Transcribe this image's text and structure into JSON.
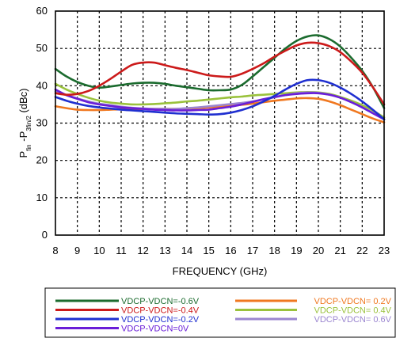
{
  "chart_data": {
    "type": "line",
    "xlabel": "FREQUENCY (GHz)",
    "ylabel": {
      "main_prefix": "P",
      "sub1": "fin",
      "mid": " -P",
      "sub2": "3fin/2",
      "suffix": " (dBc)"
    },
    "xlim": [
      8,
      23
    ],
    "ylim": [
      0,
      60
    ],
    "xticks": [
      8,
      9,
      10,
      11,
      12,
      13,
      14,
      15,
      16,
      17,
      18,
      19,
      20,
      21,
      22,
      23
    ],
    "yticks": [
      0,
      10,
      20,
      30,
      40,
      50,
      60
    ],
    "grid": true,
    "legend_position": "bottom",
    "x": [
      8,
      8.5,
      9,
      9.5,
      10,
      10.5,
      11,
      11.5,
      12,
      12.5,
      13,
      13.5,
      14,
      14.5,
      15,
      15.5,
      16,
      16.5,
      17,
      17.5,
      18,
      18.5,
      19,
      19.5,
      20,
      20.5,
      21,
      21.5,
      22,
      22.5,
      23
    ],
    "series": [
      {
        "name": "VDCP-VDCN=-0.6V",
        "color": "#1b6b2e",
        "values": [
          44.5,
          42.5,
          41,
          40,
          39.5,
          39.8,
          40.2,
          40.6,
          40.8,
          40.8,
          40.5,
          40,
          39.6,
          39.2,
          38.8,
          38.8,
          39,
          40.2,
          42.5,
          45,
          47.5,
          50,
          52,
          53.2,
          53.5,
          52.5,
          50.5,
          47.5,
          44,
          39.5,
          34
        ]
      },
      {
        "name": "VDCP-VDCN=-0.4V",
        "color": "#cc1a1a",
        "values": [
          38,
          37.6,
          37.8,
          38.6,
          40,
          41.8,
          43.8,
          45.6,
          46.2,
          46.2,
          45.5,
          44.8,
          44.2,
          43.5,
          42.8,
          42.5,
          42.4,
          43.2,
          44.5,
          46,
          47.8,
          49.4,
          50.8,
          51.5,
          51.4,
          50.6,
          49,
          46.5,
          43.5,
          39.5,
          35
        ]
      },
      {
        "name": "VDCP-VDCN=-0.2V",
        "color": "#1f2fd0",
        "values": [
          37,
          36,
          35.2,
          34.6,
          34.2,
          33.9,
          33.6,
          33.4,
          33.2,
          33,
          32.8,
          32.6,
          32.5,
          32.4,
          32.3,
          32.4,
          32.8,
          33.5,
          34.5,
          35.8,
          37.3,
          39,
          40.5,
          41.5,
          41.5,
          40.8,
          39.5,
          37.8,
          35.8,
          33.5,
          31
        ]
      },
      {
        "name": "VDCP-VDCN=0V",
        "color": "#6a1ed8",
        "values": [
          39,
          37.5,
          36.5,
          35.6,
          35,
          34.6,
          34.2,
          34,
          33.8,
          33.6,
          33.5,
          33.4,
          33.4,
          33.5,
          33.6,
          34,
          34.4,
          35,
          35.7,
          36.4,
          37,
          37.5,
          37.8,
          38,
          38,
          37.6,
          36.8,
          35.6,
          34.2,
          32.6,
          31
        ]
      },
      {
        "name": "VDCP-VDCN= 0.2V",
        "color": "#f07820",
        "values": [
          34.5,
          34,
          33.6,
          33.5,
          33.5,
          33.6,
          33.7,
          33.7,
          33.8,
          33.8,
          33.8,
          33.8,
          33.9,
          34,
          34.2,
          34.4,
          34.6,
          34.9,
          35.2,
          35.6,
          36,
          36.3,
          36.6,
          36.7,
          36.5,
          35.8,
          34.8,
          33.6,
          32.4,
          31.2,
          30.2
        ]
      },
      {
        "name": "VDCP-VDCN= 0.4V",
        "color": "#9ac23c",
        "values": [
          40.5,
          39,
          37.8,
          36.8,
          36,
          35.5,
          35.2,
          35,
          35,
          35.1,
          35.3,
          35.5,
          35.8,
          36,
          36.3,
          36.6,
          36.9,
          37.1,
          37.4,
          37.6,
          37.8,
          38,
          38.2,
          38.3,
          38.2,
          37.8,
          37,
          36,
          34.8,
          33.3,
          31.5
        ]
      },
      {
        "name": "VDCP-VDCN= 0.6V",
        "color": "#9b86d0",
        "values": [
          38.5,
          37.5,
          36.6,
          35.8,
          35.2,
          34.8,
          34.4,
          34.1,
          33.9,
          33.8,
          33.8,
          33.8,
          34,
          34.2,
          34.5,
          34.8,
          35.1,
          35.4,
          35.8,
          36.3,
          36.9,
          37.5,
          38,
          38.2,
          38.1,
          37.6,
          36.8,
          35.6,
          34.2,
          32.6,
          31
        ]
      }
    ]
  }
}
